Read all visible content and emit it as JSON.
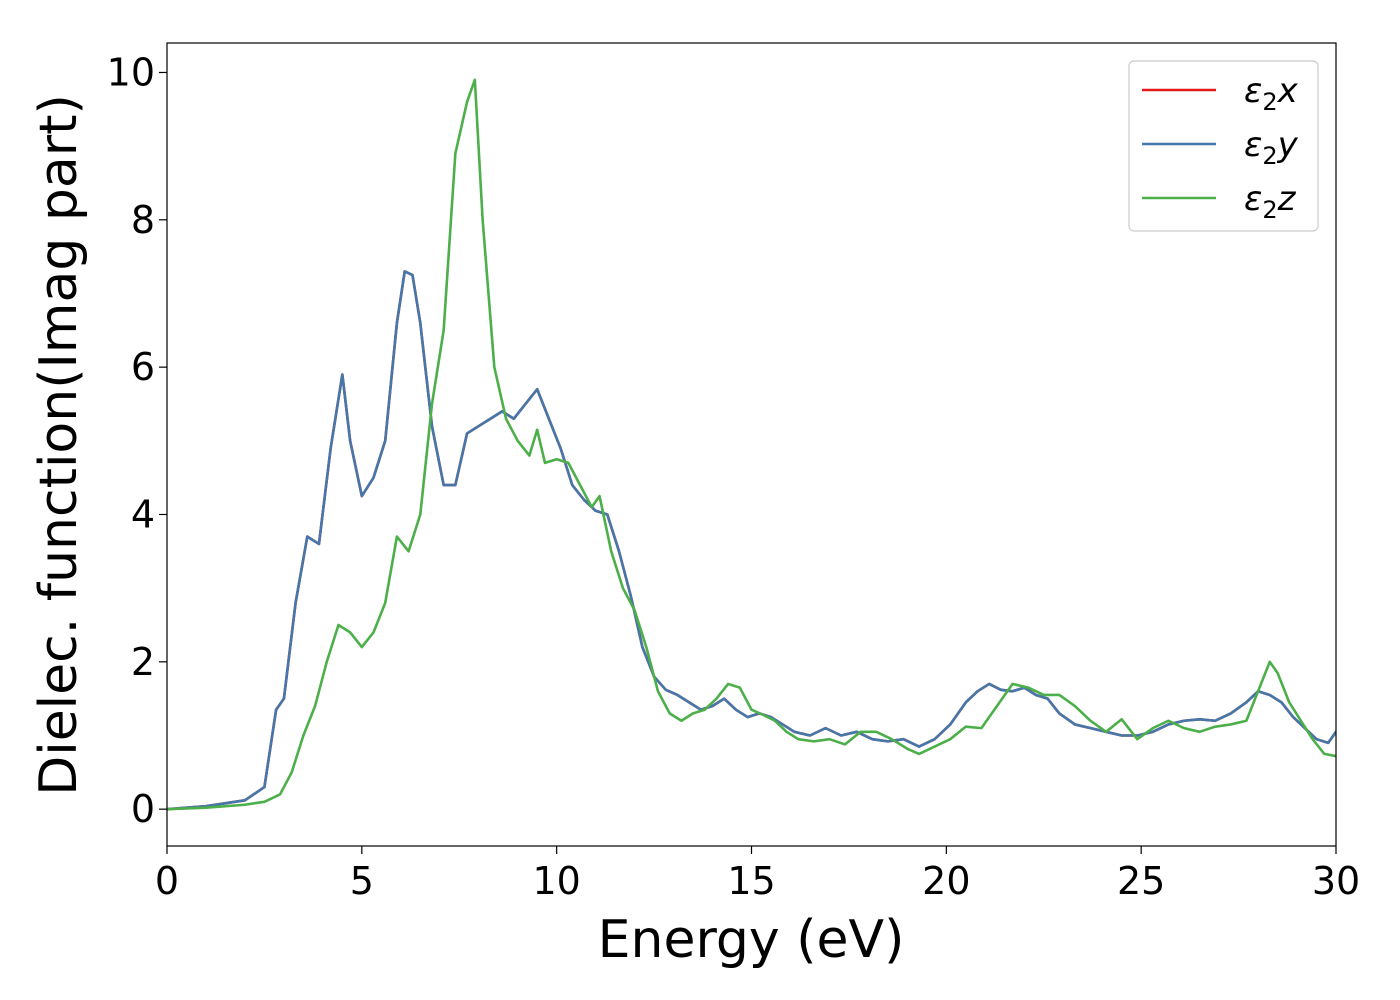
{
  "chart_data": {
    "type": "line",
    "title": "",
    "xlabel": "Energy (eV)",
    "ylabel": "Dielec. function(Imag part)",
    "xlim": [
      0,
      30
    ],
    "ylim": [
      -0.5,
      10.4
    ],
    "xticks": [
      0,
      5,
      10,
      15,
      20,
      25,
      30
    ],
    "yticks": [
      0,
      2,
      4,
      6,
      8,
      10
    ],
    "xtick_labels": [
      "0",
      "5",
      "10",
      "15",
      "20",
      "25",
      "30"
    ],
    "ytick_labels": [
      "0",
      "2",
      "4",
      "6",
      "8",
      "10"
    ],
    "grid": false,
    "legend_position": "top-right",
    "series": [
      {
        "name": "ε₂x",
        "legend_base": "ε",
        "legend_sub": "2",
        "legend_var": "x",
        "color": "#e41a1c",
        "x": [
          0,
          1,
          2,
          2.5,
          2.8,
          3.0,
          3.3,
          3.6,
          3.9,
          4.2,
          4.5,
          4.7,
          5.0,
          5.3,
          5.6,
          5.9,
          6.1,
          6.3,
          6.5,
          6.8,
          7.1,
          7.4,
          7.7,
          8.0,
          8.3,
          8.6,
          8.9,
          9.2,
          9.5,
          9.8,
          10.1,
          10.4,
          10.7,
          11.0,
          11.3,
          11.6,
          11.9,
          12.2,
          12.5,
          12.8,
          13.1,
          13.4,
          13.7,
          14.0,
          14.3,
          14.6,
          14.9,
          15.2,
          15.5,
          15.8,
          16.1,
          16.5,
          16.9,
          17.3,
          17.7,
          18.1,
          18.5,
          18.9,
          19.3,
          19.7,
          20.1,
          20.5,
          20.8,
          21.1,
          21.4,
          21.7,
          22.0,
          22.3,
          22.6,
          22.9,
          23.3,
          23.7,
          24.1,
          24.5,
          24.9,
          25.3,
          25.7,
          26.1,
          26.5,
          26.9,
          27.3,
          27.7,
          28.0,
          28.3,
          28.6,
          28.9,
          29.2,
          29.5,
          29.8,
          30.0
        ],
        "y": [
          0.0,
          0.04,
          0.12,
          0.3,
          1.35,
          1.5,
          2.8,
          3.7,
          3.6,
          4.9,
          5.9,
          5.0,
          4.25,
          4.5,
          5.0,
          6.6,
          7.3,
          7.25,
          6.6,
          5.2,
          4.4,
          4.4,
          5.1,
          5.2,
          5.3,
          5.4,
          5.3,
          5.5,
          5.7,
          5.3,
          4.9,
          4.4,
          4.2,
          4.05,
          4.0,
          3.5,
          2.9,
          2.2,
          1.8,
          1.62,
          1.55,
          1.45,
          1.35,
          1.4,
          1.5,
          1.35,
          1.25,
          1.3,
          1.25,
          1.15,
          1.05,
          1.0,
          1.1,
          1.0,
          1.05,
          0.95,
          0.92,
          0.95,
          0.85,
          0.95,
          1.15,
          1.45,
          1.6,
          1.7,
          1.62,
          1.6,
          1.65,
          1.55,
          1.5,
          1.3,
          1.15,
          1.1,
          1.05,
          1.0,
          1.0,
          1.05,
          1.15,
          1.2,
          1.22,
          1.2,
          1.3,
          1.45,
          1.6,
          1.55,
          1.45,
          1.25,
          1.1,
          0.95,
          0.9,
          1.05
        ]
      },
      {
        "name": "ε₂y",
        "legend_base": "ε",
        "legend_sub": "2",
        "legend_var": "y",
        "color": "#4477aa",
        "x": [
          0,
          1,
          2,
          2.5,
          2.8,
          3.0,
          3.3,
          3.6,
          3.9,
          4.2,
          4.5,
          4.7,
          5.0,
          5.3,
          5.6,
          5.9,
          6.1,
          6.3,
          6.5,
          6.8,
          7.1,
          7.4,
          7.7,
          8.0,
          8.3,
          8.6,
          8.9,
          9.2,
          9.5,
          9.8,
          10.1,
          10.4,
          10.7,
          11.0,
          11.3,
          11.6,
          11.9,
          12.2,
          12.5,
          12.8,
          13.1,
          13.4,
          13.7,
          14.0,
          14.3,
          14.6,
          14.9,
          15.2,
          15.5,
          15.8,
          16.1,
          16.5,
          16.9,
          17.3,
          17.7,
          18.1,
          18.5,
          18.9,
          19.3,
          19.7,
          20.1,
          20.5,
          20.8,
          21.1,
          21.4,
          21.7,
          22.0,
          22.3,
          22.6,
          22.9,
          23.3,
          23.7,
          24.1,
          24.5,
          24.9,
          25.3,
          25.7,
          26.1,
          26.5,
          26.9,
          27.3,
          27.7,
          28.0,
          28.3,
          28.6,
          28.9,
          29.2,
          29.5,
          29.8,
          30.0
        ],
        "y": [
          0.0,
          0.04,
          0.12,
          0.3,
          1.35,
          1.5,
          2.8,
          3.7,
          3.6,
          4.9,
          5.9,
          5.0,
          4.25,
          4.5,
          5.0,
          6.6,
          7.3,
          7.25,
          6.6,
          5.2,
          4.4,
          4.4,
          5.1,
          5.2,
          5.3,
          5.4,
          5.3,
          5.5,
          5.7,
          5.3,
          4.9,
          4.4,
          4.2,
          4.05,
          4.0,
          3.5,
          2.9,
          2.2,
          1.8,
          1.62,
          1.55,
          1.45,
          1.35,
          1.4,
          1.5,
          1.35,
          1.25,
          1.3,
          1.25,
          1.15,
          1.05,
          1.0,
          1.1,
          1.0,
          1.05,
          0.95,
          0.92,
          0.95,
          0.85,
          0.95,
          1.15,
          1.45,
          1.6,
          1.7,
          1.62,
          1.6,
          1.65,
          1.55,
          1.5,
          1.3,
          1.15,
          1.1,
          1.05,
          1.0,
          1.0,
          1.05,
          1.15,
          1.2,
          1.22,
          1.2,
          1.3,
          1.45,
          1.6,
          1.55,
          1.45,
          1.25,
          1.1,
          0.95,
          0.9,
          1.05
        ]
      },
      {
        "name": "ε₂z",
        "legend_base": "ε",
        "legend_sub": "2",
        "legend_var": "z",
        "color": "#4daf4a",
        "x": [
          0,
          1,
          2,
          2.5,
          2.9,
          3.2,
          3.5,
          3.8,
          4.1,
          4.4,
          4.7,
          5.0,
          5.3,
          5.6,
          5.9,
          6.2,
          6.5,
          6.8,
          7.1,
          7.4,
          7.7,
          7.9,
          8.1,
          8.4,
          8.7,
          9.0,
          9.3,
          9.5,
          9.7,
          10.0,
          10.3,
          10.6,
          10.9,
          11.1,
          11.4,
          11.7,
          12.0,
          12.3,
          12.6,
          12.9,
          13.2,
          13.5,
          13.8,
          14.1,
          14.4,
          14.7,
          15.0,
          15.3,
          15.6,
          15.9,
          16.2,
          16.6,
          17.0,
          17.4,
          17.8,
          18.2,
          18.6,
          19.0,
          19.3,
          19.7,
          20.1,
          20.5,
          20.9,
          21.3,
          21.7,
          22.1,
          22.5,
          22.9,
          23.3,
          23.7,
          24.1,
          24.5,
          24.9,
          25.3,
          25.7,
          26.1,
          26.5,
          26.9,
          27.3,
          27.7,
          28.0,
          28.3,
          28.5,
          28.8,
          29.1,
          29.4,
          29.7,
          30.0
        ],
        "y": [
          0.0,
          0.02,
          0.06,
          0.1,
          0.2,
          0.5,
          1.0,
          1.4,
          2.0,
          2.5,
          2.4,
          2.2,
          2.4,
          2.8,
          3.7,
          3.5,
          4.0,
          5.5,
          6.5,
          8.9,
          9.6,
          9.9,
          8.0,
          6.0,
          5.3,
          5.0,
          4.8,
          5.15,
          4.7,
          4.75,
          4.7,
          4.4,
          4.1,
          4.25,
          3.5,
          3.0,
          2.7,
          2.2,
          1.6,
          1.3,
          1.2,
          1.3,
          1.35,
          1.5,
          1.7,
          1.65,
          1.35,
          1.28,
          1.2,
          1.05,
          0.95,
          0.92,
          0.95,
          0.88,
          1.05,
          1.05,
          0.95,
          0.82,
          0.75,
          0.85,
          0.95,
          1.12,
          1.1,
          1.4,
          1.7,
          1.65,
          1.55,
          1.55,
          1.4,
          1.2,
          1.05,
          1.22,
          0.95,
          1.1,
          1.2,
          1.1,
          1.05,
          1.12,
          1.15,
          1.2,
          1.6,
          2.0,
          1.85,
          1.45,
          1.2,
          0.95,
          0.75,
          0.72
        ]
      }
    ]
  }
}
